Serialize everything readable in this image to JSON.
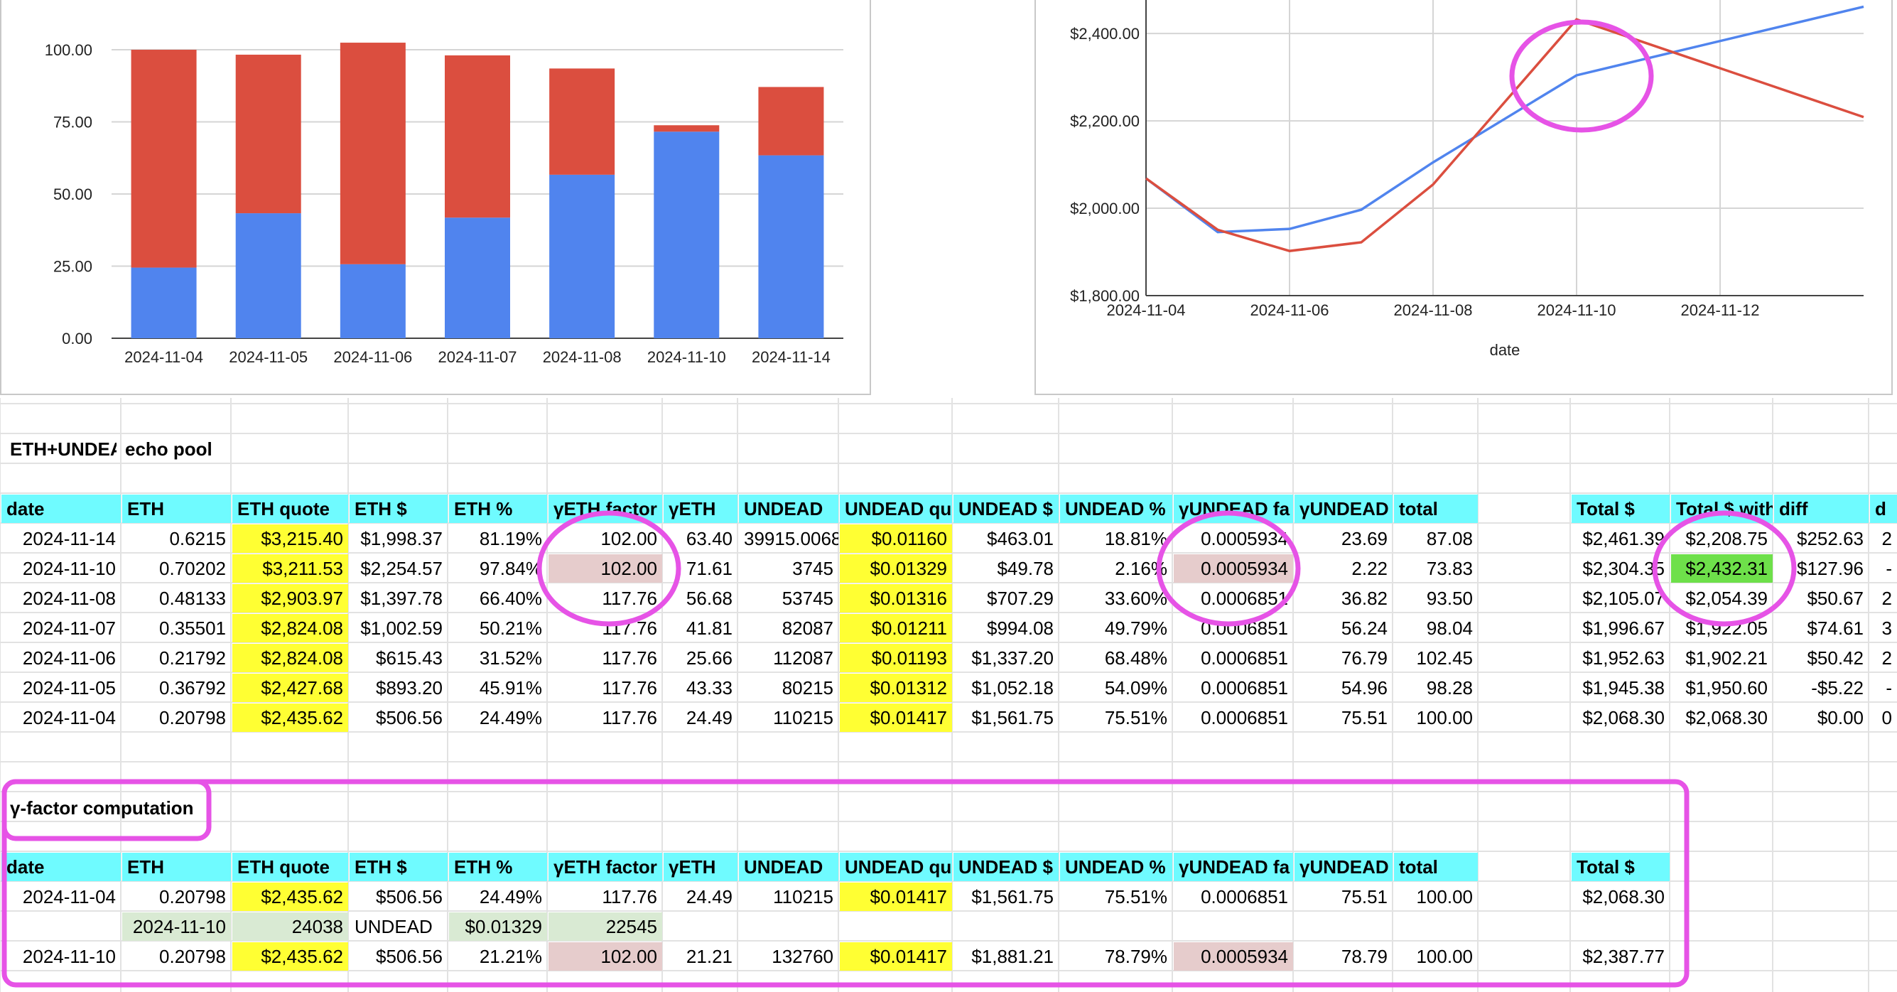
{
  "colors": {
    "blue": "#5084ee",
    "red": "#db4e3f",
    "header_cyan": "#6ffbff",
    "yellow": "#ffff33",
    "pink_cell": "#e6cccc",
    "green_cell": "#6ee04a",
    "light_green": "#d9ead3",
    "annotation_magenta": "#e653e6"
  },
  "chart_data": [
    {
      "type": "bar",
      "stacked": true,
      "categories": [
        "2024-11-04",
        "2024-11-05",
        "2024-11-06",
        "2024-11-07",
        "2024-11-08",
        "2024-11-10",
        "2024-11-14"
      ],
      "series": [
        {
          "values": [
            24.49,
            43.33,
            25.66,
            41.81,
            56.68,
            71.61,
            63.4
          ],
          "color": "#5084ee"
        },
        {
          "values": [
            75.51,
            54.96,
            76.79,
            56.24,
            36.82,
            2.22,
            23.69
          ],
          "color": "#db4e3f"
        }
      ],
      "ylim": [
        0,
        100
      ],
      "yticks": [
        "0.00",
        "25.00",
        "50.00",
        "75.00",
        "100.00"
      ],
      "grid": true
    },
    {
      "type": "line",
      "x": [
        "2024-11-04",
        "2024-11-05",
        "2024-11-06",
        "2024-11-07",
        "2024-11-08",
        "2024-11-10",
        "2024-11-14"
      ],
      "series": [
        {
          "values": [
            2068.3,
            1945.38,
            1952.63,
            1996.67,
            2105.07,
            2304.35,
            2461.39
          ],
          "color": "#5084ee"
        },
        {
          "values": [
            2068.3,
            1950.6,
            1902.21,
            1922.05,
            2054.39,
            2432.31,
            2208.75
          ],
          "color": "#db4e3f"
        }
      ],
      "xticks": [
        "2024-11-04",
        "2024-11-06",
        "2024-11-08",
        "2024-11-10",
        "2024-11-12"
      ],
      "yticks": [
        "$1,800.00",
        "$2,000.00",
        "$2,200.00",
        "$2,400.00"
      ],
      "xlabel": "date",
      "ylim": [
        1800,
        2480
      ],
      "grid": true
    }
  ],
  "sheet": {
    "pool_title": "ETH+UNDEA",
    "pool_title_b": "echo pool",
    "headers": [
      "date",
      "ETH",
      "ETH quote",
      "ETH $",
      "ETH %",
      "γETH factor",
      "γETH",
      "UNDEAD",
      "UNDEAD qu",
      "UNDEAD $",
      "UNDEAD %",
      "γUNDEAD fa",
      "γUNDEAD",
      "total"
    ],
    "headers_right": [
      "Total $",
      "Total $ with",
      "diff",
      "d"
    ],
    "rows": [
      [
        "2024-11-14",
        "0.6215",
        "$3,215.40",
        "$1,998.37",
        "81.19%",
        "102.00",
        "63.40",
        "39915.0068",
        "$0.01160",
        "$463.01",
        "18.81%",
        "0.0005934",
        "23.69",
        "87.08"
      ],
      [
        "2024-11-10",
        "0.70202",
        "$3,211.53",
        "$2,254.57",
        "97.84%",
        "102.00",
        "71.61",
        "3745",
        "$0.01329",
        "$49.78",
        "2.16%",
        "0.0005934",
        "2.22",
        "73.83"
      ],
      [
        "2024-11-08",
        "0.48133",
        "$2,903.97",
        "$1,397.78",
        "66.40%",
        "117.76",
        "56.68",
        "53745",
        "$0.01316",
        "$707.29",
        "33.60%",
        "0.0006851",
        "36.82",
        "93.50"
      ],
      [
        "2024-11-07",
        "0.35501",
        "$2,824.08",
        "$1,002.59",
        "50.21%",
        "117.76",
        "41.81",
        "82087",
        "$0.01211",
        "$994.08",
        "49.79%",
        "0.0006851",
        "56.24",
        "98.04"
      ],
      [
        "2024-11-06",
        "0.21792",
        "$2,824.08",
        "$615.43",
        "31.52%",
        "117.76",
        "25.66",
        "112087",
        "$0.01193",
        "$1,337.20",
        "68.48%",
        "0.0006851",
        "76.79",
        "102.45"
      ],
      [
        "2024-11-05",
        "0.36792",
        "$2,427.68",
        "$893.20",
        "45.91%",
        "117.76",
        "43.33",
        "80215",
        "$0.01312",
        "$1,052.18",
        "54.09%",
        "0.0006851",
        "54.96",
        "98.28"
      ],
      [
        "2024-11-04",
        "0.20798",
        "$2,435.62",
        "$506.56",
        "24.49%",
        "117.76",
        "24.49",
        "110215",
        "$0.01417",
        "$1,561.75",
        "75.51%",
        "0.0006851",
        "75.51",
        "100.00"
      ]
    ],
    "rows_right": [
      [
        "$2,461.39",
        "$2,208.75",
        "$252.63",
        "2"
      ],
      [
        "$2,304.35",
        "$2,432.31",
        "-$127.96",
        "-"
      ],
      [
        "$2,105.07",
        "$2,054.39",
        "$50.67",
        "2"
      ],
      [
        "$1,996.67",
        "$1,922.05",
        "$74.61",
        "3"
      ],
      [
        "$1,952.63",
        "$1,902.21",
        "$50.42",
        "2"
      ],
      [
        "$1,945.38",
        "$1,950.60",
        "-$5.22",
        "-"
      ],
      [
        "$2,068.30",
        "$2,068.30",
        "$0.00",
        "0"
      ]
    ],
    "gamma_title": "γ-factor computation",
    "gamma_headers": [
      "date",
      "ETH",
      "ETH quote",
      "ETH $",
      "ETH %",
      "γETH factor",
      "γETH",
      "UNDEAD",
      "UNDEAD qu",
      "UNDEAD $",
      "UNDEAD %",
      "γUNDEAD fa",
      "γUNDEAD",
      "total"
    ],
    "gamma_header_right": "Total $",
    "gamma_row1": [
      "2024-11-04",
      "0.20798",
      "$2,435.62",
      "$506.56",
      "24.49%",
      "117.76",
      "24.49",
      "110215",
      "$0.01417",
      "$1,561.75",
      "75.51%",
      "0.0006851",
      "75.51",
      "100.00"
    ],
    "gamma_row1_total": "$2,068.30",
    "gamma_row2": [
      "2024-11-10",
      "24038",
      "UNDEAD",
      "$0.01329",
      "22545"
    ],
    "gamma_row3": [
      "2024-11-10",
      "0.20798",
      "$2,435.62",
      "$506.56",
      "21.21%",
      "102.00",
      "21.21",
      "132760",
      "$0.01417",
      "$1,881.21",
      "78.79%",
      "0.0005934",
      "78.79",
      "100.00"
    ],
    "gamma_row3_total": "$2,387.77"
  }
}
